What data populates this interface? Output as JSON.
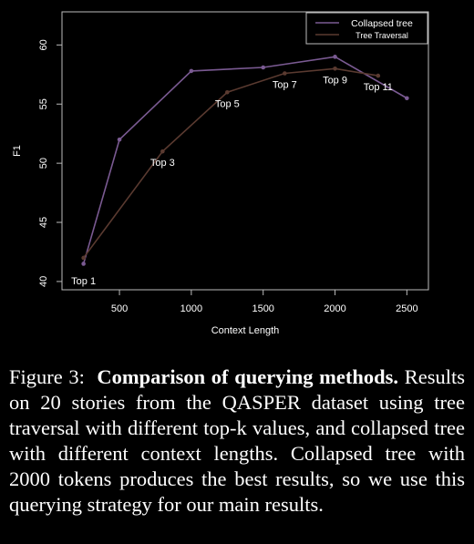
{
  "chart_data": {
    "type": "line",
    "xlabel": "Context Length",
    "ylabel": "F1",
    "xticks": [
      500,
      1000,
      1500,
      2000,
      2500
    ],
    "yticks": [
      40,
      45,
      50,
      55,
      60
    ],
    "xlim": [
      100,
      2650
    ],
    "ylim": [
      39.3,
      62.8
    ],
    "grid": false,
    "legend": "top-right",
    "series": [
      {
        "name": "Collapsed tree",
        "color": "#7a5a92",
        "x": [
          250,
          500,
          1000,
          1500,
          2000,
          2500
        ],
        "y": [
          41.5,
          52,
          57.8,
          58.1,
          59,
          55.5
        ]
      },
      {
        "name": "Tree Traversal",
        "color": "#5a3a30",
        "x": [
          250,
          800,
          1250,
          1650,
          2000,
          2300
        ],
        "y": [
          42,
          51,
          56,
          57.6,
          58,
          57.4
        ]
      }
    ],
    "annotations": [
      {
        "text": "Top 1",
        "x": 250,
        "y": 41
      },
      {
        "text": "Top 3",
        "x": 800,
        "y": 51
      },
      {
        "text": "Top 5",
        "x": 1250,
        "y": 56
      },
      {
        "text": "Top 7",
        "x": 1650,
        "y": 57.6
      },
      {
        "text": "Top 9",
        "x": 2000,
        "y": 58
      },
      {
        "text": "Top 11",
        "x": 2300,
        "y": 57.4
      }
    ]
  },
  "caption": {
    "label": "Figure 3:",
    "title": "Comparison of querying methods.",
    "body": "Results on 20 stories from the QASPER dataset using tree traversal with different top-k values, and collapsed tree with different context lengths. Collapsed tree with 2000 tokens produces the best results, so we use this querying strategy for our main results."
  }
}
